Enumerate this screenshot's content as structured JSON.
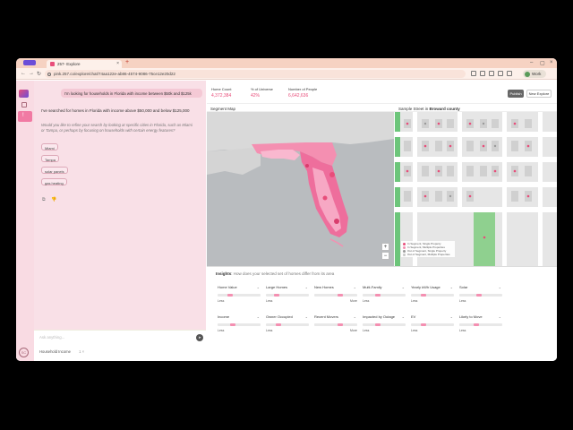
{
  "browser": {
    "tab_title": "257- Explore",
    "url": "pink.257.co/explore/chat/74aa122e-ab86-4574-9086-75ce12e20d22",
    "profile_name": "Work"
  },
  "sidebar": {
    "user_initials": "SC"
  },
  "chat": {
    "user_message": "I'm looking for households in Florida with income between $50k and $125k",
    "assistant_message": "I've searched for homes in Florida with income above $50,000 and below $125,000",
    "assistant_question": "Would you like to refine your search by looking at specific cities in Florida, such as Miami or Tampa, or perhaps by focusing on households with certain energy features?",
    "chips": [
      "Miami",
      "Tampa",
      "solar panels",
      "gas heating"
    ],
    "input_placeholder": "Ask anything...",
    "filter_label": "Household Income",
    "filter_count": "1"
  },
  "stats": [
    {
      "label": "Home Count",
      "value": "4,372,384"
    },
    {
      "label": "% of Universe",
      "value": "42%"
    },
    {
      "label": "Number of People",
      "value": "6,642,636"
    }
  ],
  "header": {
    "publish_label": "Publish",
    "new_explore_label": "New Explore"
  },
  "segment_map": {
    "title": "Segment Map",
    "zoom_in": "+",
    "zoom_out": "−"
  },
  "sample_street": {
    "title_prefix": "Sample Street in",
    "county": "Broward county",
    "legend": [
      "In Segment, Single Property",
      "In Segment, Multiple Properties",
      "Out of Segment, Single Property",
      "Out of Segment, Multiple Properties"
    ]
  },
  "insights": {
    "title": "Insights",
    "subtitle": "How does your selected set of homes differ from its area",
    "cards": [
      {
        "label": "Home Value",
        "low": "Less",
        "high": "",
        "level": 0.3
      },
      {
        "label": "Large Homes",
        "low": "Less",
        "high": "",
        "level": 0.25
      },
      {
        "label": "New Homes",
        "low": "",
        "high": "More",
        "level": 0.6
      },
      {
        "label": "Multi-Family",
        "low": "Less",
        "high": "",
        "level": 0.35
      },
      {
        "label": "Yearly kWh Usage",
        "low": "Less",
        "high": "",
        "level": 0.3
      },
      {
        "label": "Solar",
        "low": "Less",
        "high": "",
        "level": 0.45
      },
      {
        "label": "Income",
        "low": "Less",
        "high": "",
        "level": 0.35
      },
      {
        "label": "Owner Occupied",
        "low": "Less",
        "high": "",
        "level": 0.3
      },
      {
        "label": "Recent Movers",
        "low": "",
        "high": "More",
        "level": 0.6
      },
      {
        "label": "Impacted by Outage",
        "low": "Less",
        "high": "",
        "level": 0.35
      },
      {
        "label": "EV",
        "low": "Less",
        "high": "",
        "level": 0.3
      },
      {
        "label": "Likely to Move",
        "low": "Less",
        "high": "",
        "level": 0.4
      }
    ]
  },
  "colors": {
    "accent": "#e84d7a",
    "chat_bg": "#f9e0e7",
    "rail_bg": "#f9dbe3",
    "insight_marker": "#f48fb1"
  }
}
